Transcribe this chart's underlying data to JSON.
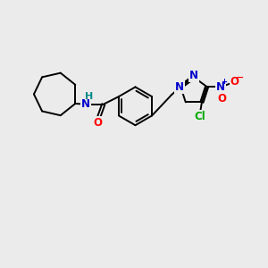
{
  "background_color": "#ebebeb",
  "bond_color": "#000000",
  "atom_colors": {
    "N": "#0000cc",
    "O": "#ff0000",
    "Cl": "#00aa00",
    "H": "#008888",
    "C": "#000000"
  },
  "lw": 1.4,
  "dbo": 0.055,
  "fontsize": 8.5
}
